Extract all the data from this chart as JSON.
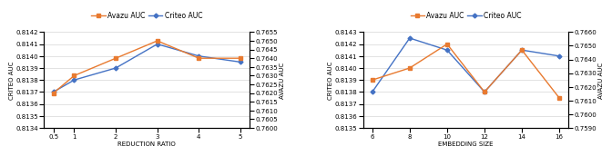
{
  "chart1": {
    "x_labels": [
      "0.5",
      "1",
      "2",
      "3",
      "4",
      "5"
    ],
    "x_values": [
      0.5,
      1,
      2,
      3,
      4,
      5
    ],
    "criteo_values": [
      0.8137,
      0.8138,
      0.8139,
      0.8141,
      0.814,
      0.81395
    ],
    "avazu_values": [
      0.8137,
      0.8138,
      0.81405,
      0.8141,
      0.814,
      0.81395
    ],
    "avazu_right": [
      0.762,
      0.763,
      0.764,
      0.765,
      0.764,
      0.764
    ],
    "xlabel": "REDUCTION RATIO",
    "ylabel_left": "CRITEO AUC",
    "ylabel_right": "AVAZU AUC",
    "ylim_left": [
      0.8134,
      0.8142
    ],
    "ylim_right": [
      0.76,
      0.7655
    ],
    "yticks_left": [
      0.8134,
      0.8135,
      0.8136,
      0.8137,
      0.8138,
      0.8139,
      0.814,
      0.8141,
      0.8142
    ],
    "yticks_right": [
      0.76,
      0.7605,
      0.761,
      0.7615,
      0.762,
      0.7625,
      0.763,
      0.7635,
      0.764,
      0.7645,
      0.765,
      0.7655
    ]
  },
  "chart2": {
    "x_labels": [
      "6",
      "8",
      "10",
      "12",
      "14",
      "16"
    ],
    "x_values": [
      6,
      8,
      10,
      12,
      14,
      16
    ],
    "criteo_values": [
      0.8138,
      0.81425,
      0.81415,
      0.8138,
      0.81415,
      0.8141
    ],
    "avazu_right": [
      0.7618,
      0.7655,
      0.7641,
      0.765,
      0.7652,
      0.764
    ],
    "orange_criteo": [
      0.8139,
      0.814,
      0.8142,
      0.8138,
      0.81415,
      0.81375
    ],
    "xlabel": "EMBEDDING SIZE",
    "ylabel_left": "CRITEO AUC",
    "ylabel_right": "AVAZU AUC",
    "ylim_left": [
      0.8135,
      0.8143
    ],
    "ylim_right": [
      0.759,
      0.766
    ],
    "yticks_left": [
      0.8135,
      0.8136,
      0.8137,
      0.8138,
      0.8139,
      0.814,
      0.8141,
      0.8142,
      0.8143
    ],
    "yticks_right": [
      0.759,
      0.76,
      0.761,
      0.762,
      0.763,
      0.764,
      0.765,
      0.766
    ]
  },
  "legend_labels": [
    "Avazu AUC",
    "Criteo AUC"
  ],
  "orange_color": "#E87A30",
  "blue_color": "#4472C4",
  "marker_orange": "s",
  "marker_blue": "D",
  "fontsize_tick": 5.0,
  "fontsize_label": 5.0,
  "fontsize_legend": 5.5,
  "linewidth": 1.0,
  "markersize": 2.5
}
